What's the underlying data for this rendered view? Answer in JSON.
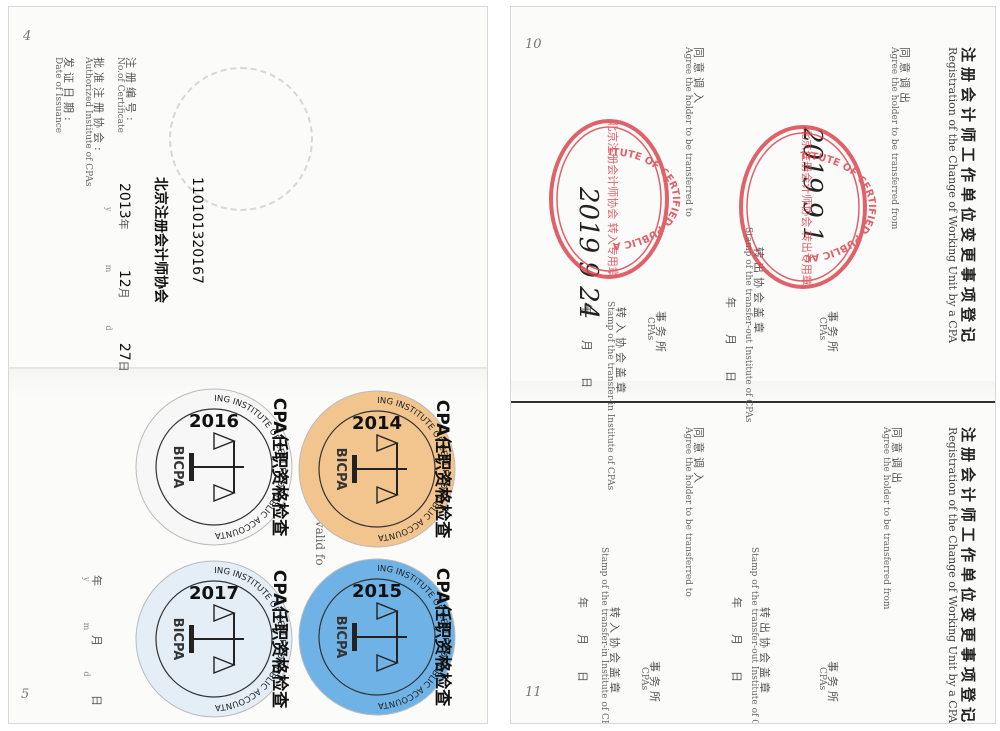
{
  "left_page": {
    "page_number_top": "4",
    "page_number_bottom": "5",
    "certificate": {
      "no_label_cn": "注册编号:",
      "no_label_en": "No.of Certificate",
      "no_value": "110101320167",
      "institute_label_cn": "批准注册协会:",
      "institute_label_en": "Authorized Institute of CPAs",
      "institute_value": "北京注册会计师协会",
      "date_label_cn": "发证日期:",
      "date_label_en": "Date of Issuance",
      "date_year": "2013",
      "date_year_unit": "年",
      "date_month": "12",
      "date_month_unit": "月",
      "date_day": "27",
      "date_day_unit": "日",
      "date_en_y": "y",
      "date_en_m": "m",
      "date_en_d": "d"
    },
    "valid_text": "is valid fo",
    "blank_date": {
      "y": "年",
      "m": "月",
      "d": "日",
      "ey": "y",
      "em": "m",
      "ed": "d"
    }
  },
  "stickers": [
    {
      "year": "2014",
      "title": "CPA任职资格检查",
      "org": "BEIJING INSTITUTE OF CERTIFIED PUBLIC ACCOUNTANTS",
      "abbr": "BICPA",
      "color": "#f2c48e"
    },
    {
      "year": "2015",
      "title": "CPA任职资格检查",
      "org": "BEIJING INSTITUTE OF CERTIFIED PUBLIC ACCOUNTANTS",
      "abbr": "BICPA",
      "color": "#6fb2e6"
    },
    {
      "year": "2016",
      "title": "CPA任职资格检查",
      "org": "BEIJING INSTITUTE OF CERTIFIED PUBLIC ACCOUNTANTS",
      "abbr": "BICPA",
      "color": "#f7f7f7"
    },
    {
      "year": "2017",
      "title": "CPA任职资格检查",
      "org": "BEIJING INSTITUTE OF CERTIFIED PUBLIC ACCOUNTANTS",
      "abbr": "BICPA",
      "color": "#e3eef7"
    }
  ],
  "right_page": {
    "page_number_top": "10",
    "page_number_bottom": "11",
    "sections": [
      {
        "heading_cn": "注册会计师工作单位变更事项登记",
        "heading_en": "Registration of the Change of Working Unit by a CPA",
        "agree_from_cn": "同意调出",
        "agree_from_en": "Agree the holder to be transferred from",
        "cpa_cn": "事务所",
        "cpa_en": "CPAs",
        "stamp_out_cn": "转出协会盖章",
        "stamp_out_en": "Stamp of the transfer-out Institute of CPAs",
        "agree_to_cn": "同意调入",
        "agree_to_en": "Agree the holder to be transferred to",
        "stamp_in_cn": "转入协会盖章",
        "stamp_in_en": "Stamp of the transfer-in Institute of CPAs",
        "date_cn": {
          "y": "年",
          "m": "月",
          "d": "日"
        },
        "date_en": {
          "y": "y",
          "m": "m",
          "d": "d"
        }
      },
      {
        "heading_cn": "注册会计师工作单位变更事项登记",
        "heading_en": "Registration of the Change of Working Unit by a CPA",
        "agree_from_cn": "同意调出",
        "agree_from_en": "Agree the holder to be transferred from",
        "cpa_cn": "事务所",
        "cpa_en": "CPAs",
        "stamp_out_cn": "转出协会盖章",
        "stamp_out_en": "Stamp of the transfer-out Institute of CPAs",
        "agree_to_cn": "同意调入",
        "agree_to_en": "Agree the holder to be transferred to",
        "stamp_in_cn": "转入协会盖章",
        "stamp_in_en": "Stamp of the transfer-in Institute of CPAs",
        "date_cn": {
          "y": "年",
          "m": "月",
          "d": "日"
        },
        "date_en": {
          "y": "y",
          "m": "m",
          "d": "d"
        }
      }
    ],
    "seals": [
      {
        "ring": "BEIJING INSTITUTE OF CERTIFIED PUBLIC ACCOUNTANTS",
        "center": "北京注册会计师协会 转出专用章",
        "color": "#d9414b"
      },
      {
        "ring": "BEIJING INSTITUTE OF CERTIFIED PUBLIC ACCOUNTANTS",
        "center": "北京注册会计师协会 转入专用章",
        "color": "#d9414b"
      }
    ],
    "handwriting": [
      "2019 9 1",
      "2019 9 24"
    ]
  },
  "colors": {
    "paper": "#fbfbf9",
    "seal_red": "#d9414b",
    "ink": "#222222"
  }
}
